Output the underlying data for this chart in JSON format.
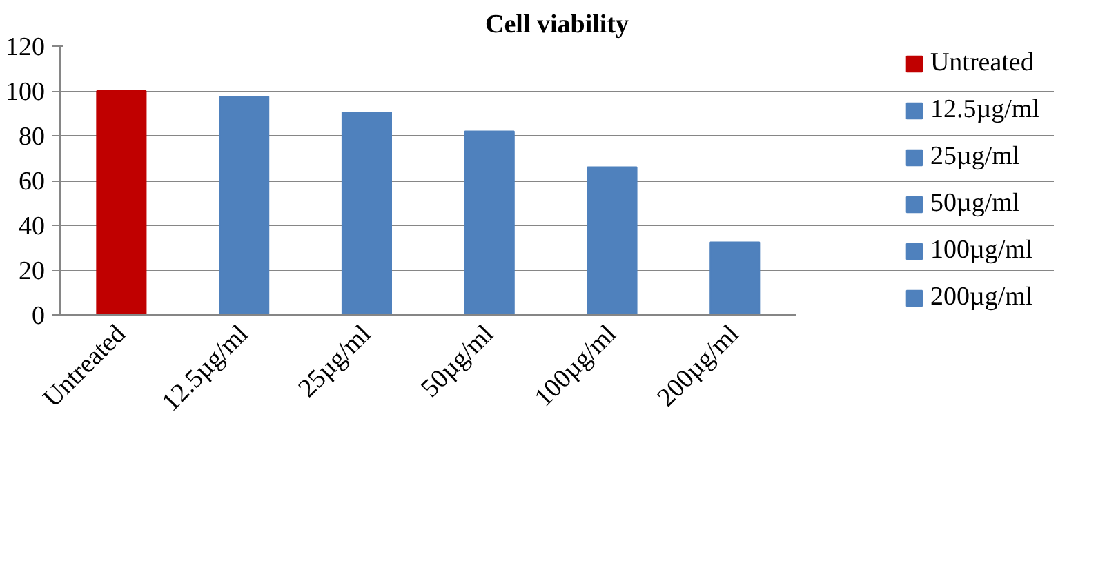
{
  "chart_data": {
    "type": "bar",
    "title": "Cell viability",
    "stacked": true,
    "categories": [
      "Untreated",
      "12.5µg/ml",
      "25µg/ml",
      "50µg/ml",
      "100µg/ml",
      "200µg/ml"
    ],
    "series": [
      {
        "name": "Untreated",
        "color": "#c00000",
        "values": [
          100,
          null,
          null,
          null,
          null,
          null
        ]
      },
      {
        "name": "12.5µg/ml",
        "color": "#4f81bd",
        "values": [
          null,
          97.5,
          null,
          null,
          null,
          null
        ]
      },
      {
        "name": "25µg/ml",
        "color": "#4f81bd",
        "values": [
          null,
          null,
          90.5,
          null,
          null,
          null
        ]
      },
      {
        "name": "50µg/ml",
        "color": "#4f81bd",
        "values": [
          null,
          null,
          null,
          82,
          null,
          null
        ]
      },
      {
        "name": "100µg/ml",
        "color": "#4f81bd",
        "values": [
          null,
          null,
          null,
          null,
          66,
          null
        ]
      },
      {
        "name": "200µg/ml",
        "color": "#4f81bd",
        "values": [
          null,
          null,
          null,
          null,
          null,
          32.5
        ]
      }
    ],
    "ylim": [
      0,
      120
    ],
    "yticks": [
      0,
      20,
      40,
      60,
      80,
      100,
      120
    ],
    "grid": "y",
    "legend": "right"
  }
}
